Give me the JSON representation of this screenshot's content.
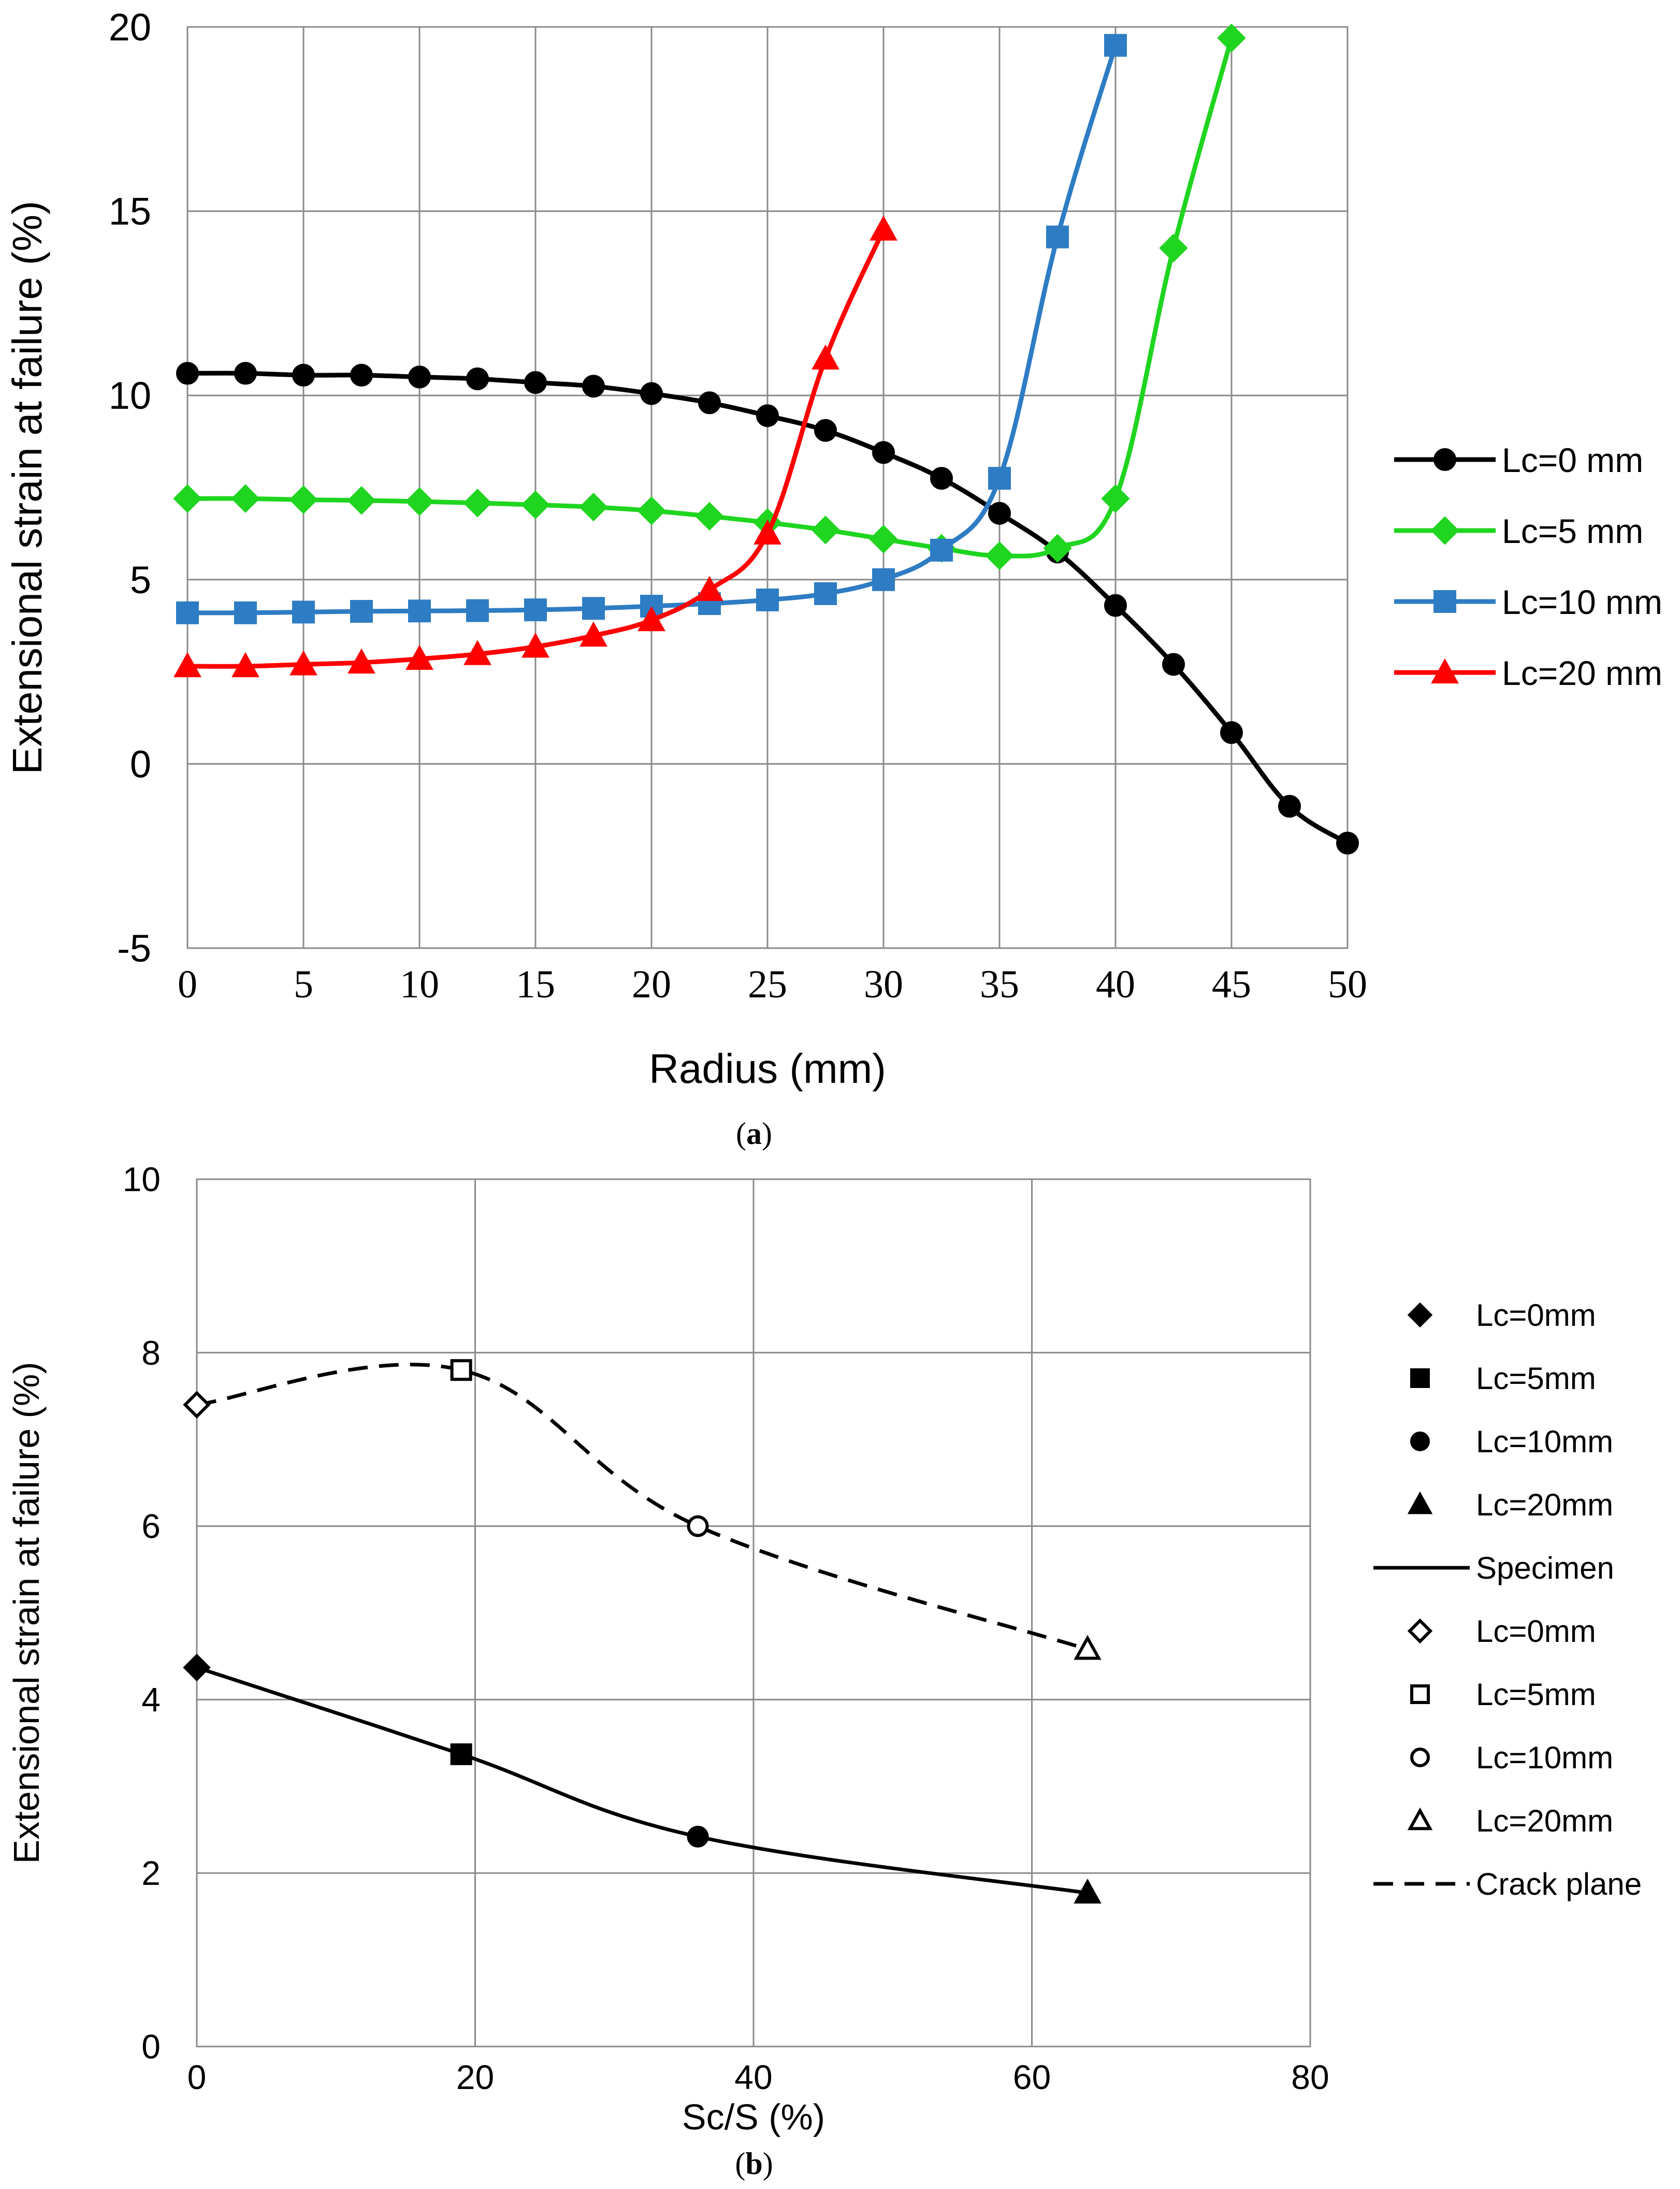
{
  "chart_data": [
    {
      "type": "line",
      "panel_label": "a",
      "title": "",
      "xlabel": "Radius (mm)",
      "ylabel": "Extensional strain at failure (%)",
      "xlim": [
        0,
        50
      ],
      "ylim": [
        -5,
        20
      ],
      "x_ticks": [
        0,
        5,
        10,
        15,
        20,
        25,
        30,
        35,
        40,
        45,
        50
      ],
      "y_ticks": [
        -5,
        0,
        5,
        10,
        15,
        20
      ],
      "grid": true,
      "legend_position": "right",
      "series": [
        {
          "name": "Lc=0 mm",
          "color": "#000000",
          "marker": "circle",
          "filled": true,
          "line": "solid",
          "x": [
            0,
            2.5,
            5,
            7.5,
            10,
            12.5,
            15,
            17.5,
            20,
            22.5,
            25,
            27.5,
            30,
            32.5,
            35,
            37.5,
            40,
            42.5,
            45,
            47.5,
            50
          ],
          "y": [
            10.6,
            10.6,
            10.55,
            10.55,
            10.5,
            10.45,
            10.35,
            10.25,
            10.05,
            9.8,
            9.45,
            9.05,
            8.45,
            7.75,
            6.8,
            5.75,
            4.3,
            2.7,
            0.85,
            -1.15,
            -2.15
          ]
        },
        {
          "name": "Lc=5 mm",
          "color": "#1fd51f",
          "marker": "diamond",
          "filled": true,
          "line": "solid",
          "x": [
            0,
            2.5,
            5,
            7.5,
            10,
            12.5,
            15,
            17.5,
            20,
            22.5,
            25,
            27.5,
            30,
            32.5,
            35,
            37.5,
            40,
            42.5,
            45
          ],
          "y": [
            7.2,
            7.2,
            7.17,
            7.15,
            7.12,
            7.08,
            7.03,
            6.97,
            6.87,
            6.72,
            6.55,
            6.35,
            6.1,
            5.85,
            5.65,
            5.85,
            7.2,
            14.0,
            19.7
          ]
        },
        {
          "name": "Lc=10 mm",
          "color": "#2e7cc4",
          "marker": "square",
          "filled": true,
          "line": "solid",
          "x": [
            0,
            2.5,
            5,
            7.5,
            10,
            12.5,
            15,
            17.5,
            20,
            22.5,
            25,
            27.5,
            30,
            32.5,
            35,
            37.5,
            40
          ],
          "y": [
            4.1,
            4.1,
            4.12,
            4.14,
            4.15,
            4.16,
            4.18,
            4.22,
            4.28,
            4.35,
            4.45,
            4.62,
            5.0,
            5.8,
            7.75,
            14.3,
            19.5
          ]
        },
        {
          "name": "Lc=20 mm",
          "color": "#ff0000",
          "marker": "triangle",
          "filled": true,
          "line": "solid",
          "x": [
            0,
            2.5,
            5,
            7.5,
            10,
            12.5,
            15,
            17.5,
            20,
            22.5,
            25,
            27.5,
            30
          ],
          "y": [
            2.65,
            2.65,
            2.7,
            2.75,
            2.85,
            2.98,
            3.18,
            3.48,
            3.9,
            4.72,
            6.25,
            11.0,
            14.5
          ]
        }
      ]
    },
    {
      "type": "line",
      "panel_label": "b",
      "title": "",
      "xlabel": "Sc/S (%)",
      "ylabel": "Extensional strain at failure (%)",
      "xlim": [
        0,
        80
      ],
      "ylim": [
        0,
        10
      ],
      "x_ticks": [
        0,
        20,
        40,
        60,
        80
      ],
      "y_ticks": [
        0,
        2,
        4,
        6,
        8,
        10
      ],
      "grid": true,
      "legend_position": "right",
      "points": [
        {
          "name": "Lc=0mm",
          "group": "Specimen",
          "marker": "diamond",
          "filled": true,
          "x": 0,
          "y": 4.37
        },
        {
          "name": "Lc=5mm",
          "group": "Specimen",
          "marker": "square",
          "filled": true,
          "x": 19,
          "y": 3.37
        },
        {
          "name": "Lc=10mm",
          "group": "Specimen",
          "marker": "circle",
          "filled": true,
          "x": 36,
          "y": 2.42
        },
        {
          "name": "Lc=20mm",
          "group": "Specimen",
          "marker": "triangle",
          "filled": true,
          "x": 64,
          "y": 1.77
        },
        {
          "name": "Lc=0mm",
          "group": "Crack plane",
          "marker": "diamond",
          "filled": false,
          "x": 0,
          "y": 7.4
        },
        {
          "name": "Lc=5mm",
          "group": "Crack plane",
          "marker": "square",
          "filled": false,
          "x": 19,
          "y": 7.8
        },
        {
          "name": "Lc=10mm",
          "group": "Crack plane",
          "marker": "circle",
          "filled": false,
          "x": 36,
          "y": 6.0
        },
        {
          "name": "Lc=20mm",
          "group": "Crack plane",
          "marker": "triangle",
          "filled": false,
          "x": 64,
          "y": 4.58
        }
      ],
      "series": [
        {
          "name": "Specimen",
          "line": "solid",
          "x": [
            0,
            19,
            36,
            64
          ],
          "y": [
            4.37,
            3.37,
            2.42,
            1.77
          ]
        },
        {
          "name": "Crack plane",
          "line": "dashed",
          "x": [
            0,
            19,
            36,
            64
          ],
          "y": [
            7.4,
            7.8,
            6.0,
            4.58
          ]
        }
      ],
      "legend": [
        {
          "label": "Lc=0mm",
          "marker": "diamond",
          "filled": true
        },
        {
          "label": "Lc=5mm",
          "marker": "square",
          "filled": true
        },
        {
          "label": "Lc=10mm",
          "marker": "circle",
          "filled": true
        },
        {
          "label": "Lc=20mm",
          "marker": "triangle",
          "filled": true
        },
        {
          "label": "Specimen",
          "line": "solid"
        },
        {
          "label": "Lc=0mm",
          "marker": "diamond",
          "filled": false
        },
        {
          "label": "Lc=5mm",
          "marker": "square",
          "filled": false
        },
        {
          "label": "Lc=10mm",
          "marker": "circle",
          "filled": false
        },
        {
          "label": "Lc=20mm",
          "marker": "triangle",
          "filled": false
        },
        {
          "label": "Crack plane",
          "line": "dashed"
        }
      ]
    }
  ]
}
